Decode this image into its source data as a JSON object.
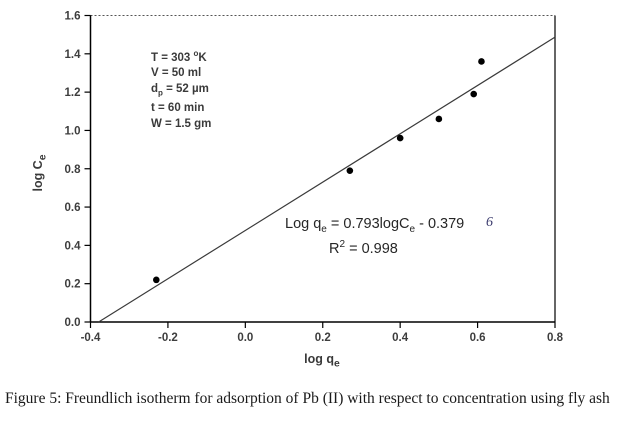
{
  "figure_caption": "Figure 5: Freundlich isotherm for adsorption of Pb (II) with respect to concentration using fly ash",
  "chart_data": {
    "type": "scatter",
    "title": "",
    "xlabel": {
      "main": "log q",
      "sub": "e"
    },
    "ylabel": {
      "main": "log C",
      "sub": "e"
    },
    "xlim": [
      -0.4,
      0.8
    ],
    "ylim": [
      0.0,
      1.6
    ],
    "xticks": [
      "-0.4",
      "-0.2",
      "0.0",
      "0.2",
      "0.4",
      "0.6",
      "0.8"
    ],
    "yticks": [
      "0.0",
      "0.2",
      "0.4",
      "0.6",
      "0.8",
      "1.0",
      "1.2",
      "1.4",
      "1.6"
    ],
    "grid": false,
    "legend": "none",
    "point_color": "#000000",
    "line_color": "#3a3a3a",
    "points": [
      {
        "x": -0.23,
        "y": 0.22
      },
      {
        "x": 0.27,
        "y": 0.79
      },
      {
        "x": 0.4,
        "y": 0.96
      },
      {
        "x": 0.5,
        "y": 1.06
      },
      {
        "x": 0.59,
        "y": 1.19
      },
      {
        "x": 0.61,
        "y": 1.36
      }
    ],
    "fit_line": {
      "slope": 0.793,
      "intercept": -0.379,
      "r_squared": 0.998,
      "x_start": -0.379,
      "y_start": 0.0,
      "x_end": 0.8,
      "y_end": 1.487
    },
    "annotations": {
      "conditions": {
        "temperature_pre": "T = 303 ",
        "temperature_sup": "o",
        "temperature_post": "K",
        "volume": "V = 50 ml",
        "particle_pre": "d",
        "particle_sub": "p",
        "particle_post": " = 52 µm",
        "time": "t = 60 min",
        "weight": "W = 1.5 gm"
      },
      "equation": {
        "p1": "Log q",
        "s1": "e",
        "p2": " = 0.793logC",
        "s2": "e",
        "p3": " - 0.379",
        "stray_char": "6",
        "r2_base": "R",
        "r2_sup": "2",
        "r2_rest": " = 0.998"
      }
    }
  }
}
